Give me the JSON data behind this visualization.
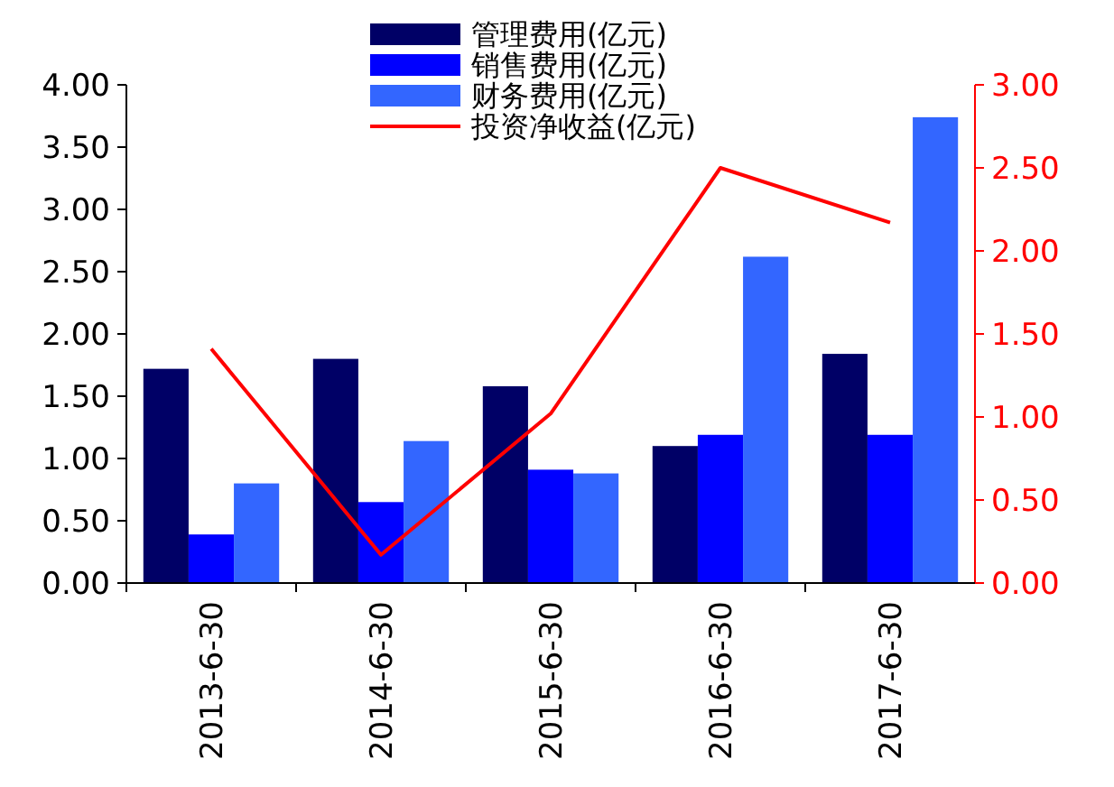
{
  "chart_data": {
    "type": "bar",
    "categories": [
      "2013-6-30",
      "2014-6-30",
      "2015-6-30",
      "2016-6-30",
      "2017-6-30"
    ],
    "series": [
      {
        "name": "管理费用(亿元)",
        "color": "#000066",
        "values": [
          1.72,
          1.8,
          1.58,
          1.1,
          1.84
        ]
      },
      {
        "name": "销售费用(亿元)",
        "color": "#0000ff",
        "values": [
          0.39,
          0.65,
          0.91,
          1.19,
          1.19
        ]
      },
      {
        "name": "财务费用(亿元)",
        "color": "#3366ff",
        "values": [
          0.8,
          1.14,
          0.88,
          2.62,
          3.74
        ]
      },
      {
        "name": "投资净收益(亿元)",
        "color": "#ff0000",
        "type": "line",
        "axis": "y2",
        "values": [
          1.41,
          0.17,
          1.02,
          2.5,
          2.17
        ]
      }
    ],
    "ylim": [
      0,
      4
    ],
    "yticks": [
      {
        "value": 0,
        "label": "0.00"
      },
      {
        "value": 0.5,
        "label": "0.50"
      },
      {
        "value": 1,
        "label": "1.00"
      },
      {
        "value": 1.5,
        "label": "1.50"
      },
      {
        "value": 2,
        "label": "2.00"
      },
      {
        "value": 2.5,
        "label": "2.50"
      },
      {
        "value": 3,
        "label": "3.00"
      },
      {
        "value": 3.5,
        "label": "3.50"
      },
      {
        "value": 4,
        "label": "4.00"
      }
    ],
    "y2lim": [
      0,
      3
    ],
    "y2ticks": [
      {
        "value": 0,
        "label": "0.00"
      },
      {
        "value": 0.5,
        "label": "0.50"
      },
      {
        "value": 1,
        "label": "1.00"
      },
      {
        "value": 1.5,
        "label": "1.50"
      },
      {
        "value": 2,
        "label": "2.00"
      },
      {
        "value": 2.5,
        "label": "2.50"
      },
      {
        "value": 3,
        "label": "3.00"
      }
    ],
    "legend": "top",
    "grid": false
  }
}
